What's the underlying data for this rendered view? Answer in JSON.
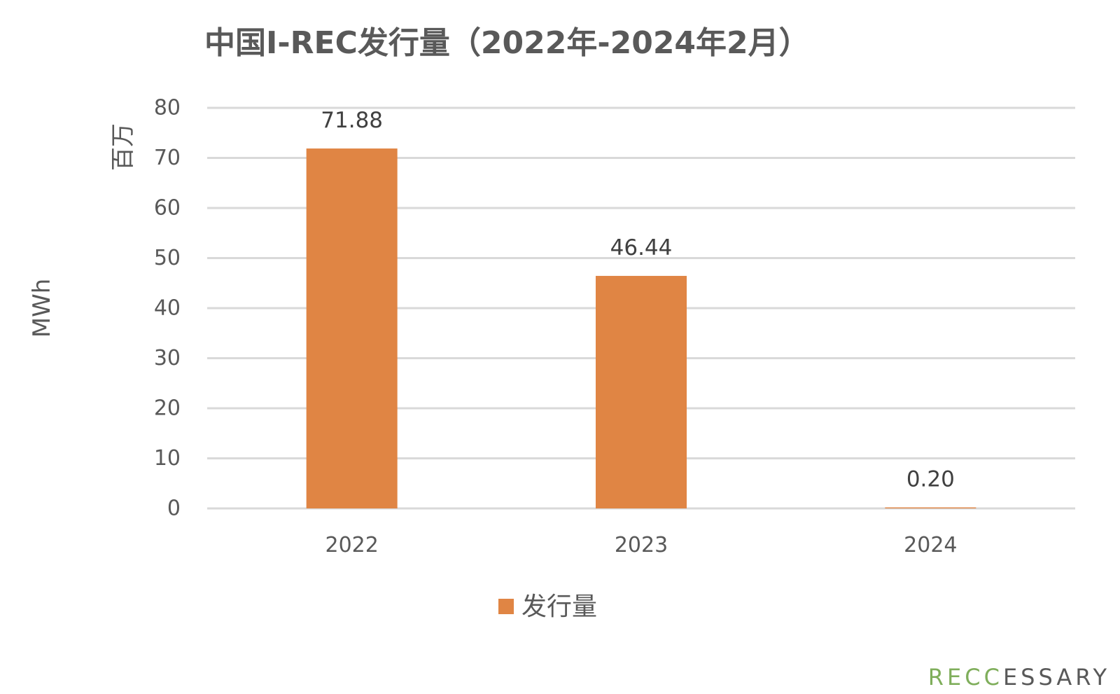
{
  "chart_data": {
    "type": "bar",
    "title": "中国I-REC发行量（2022年-2024年2月）",
    "ylabel": "MWh",
    "yunit": "百万",
    "categories": [
      "2022",
      "2023",
      "2024"
    ],
    "series": [
      {
        "name": "发行量",
        "values": [
          71.88,
          46.44,
          0.2
        ],
        "data_labels": [
          "71.88",
          "46.44",
          "0.20"
        ],
        "color": "#e08544"
      }
    ],
    "ylim": [
      0,
      80
    ],
    "yticks": [
      "0",
      "10",
      "20",
      "30",
      "40",
      "50",
      "60",
      "70",
      "80"
    ],
    "grid": true,
    "legend_position": "bottom"
  },
  "watermark": {
    "text": "RECCESSARY",
    "green_color": "#7fae5b",
    "gray_color": "#595959"
  }
}
